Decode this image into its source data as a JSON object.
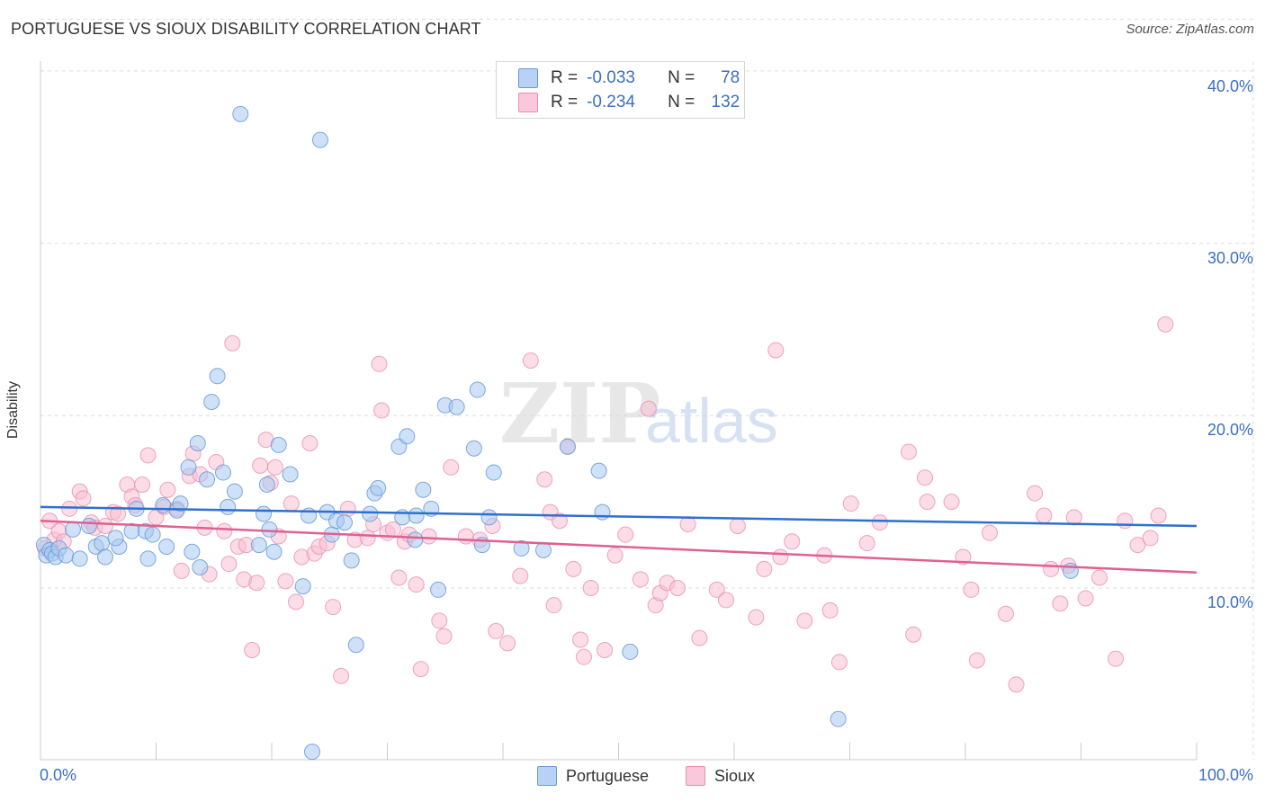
{
  "header": {
    "title": "PORTUGUESE VS SIOUX DISABILITY CORRELATION CHART",
    "source": "Source: ZipAtlas.com"
  },
  "legend": {
    "portuguese": {
      "r_label": "R =",
      "r_value": "-0.033",
      "n_label": "N =",
      "n_value": "78"
    },
    "sioux": {
      "r_label": "R =",
      "r_value": "-0.234",
      "n_label": "N =",
      "n_value": "132"
    }
  },
  "colors": {
    "portuguese_fill": "#a8c8f0",
    "portuguese_stroke": "#6a9ad8",
    "portuguese_line": "#2f6fd0",
    "sioux_fill": "#f8c0d4",
    "sioux_stroke": "#e890b0",
    "sioux_line": "#e0608f",
    "axis_text": "#3a6fc4",
    "grid": "#dddddd"
  },
  "chart_data": {
    "type": "scatter",
    "title": "PORTUGUESE VS SIOUX DISABILITY CORRELATION CHART",
    "xlabel": "",
    "ylabel": "Disability",
    "xlim": [
      0,
      100
    ],
    "ylim": [
      0,
      43
    ],
    "x_tick_labels": [
      "0.0%",
      "100.0%"
    ],
    "y_ticks": [
      10,
      20,
      30,
      40
    ],
    "y_tick_labels": [
      "10.0%",
      "20.0%",
      "30.0%",
      "40.0%"
    ],
    "grid": true,
    "legend_position": "top-center",
    "watermark": "ZIPatlas",
    "series": [
      {
        "name": "Portuguese",
        "r": -0.033,
        "n": 78,
        "trend": {
          "x": [
            0,
            100
          ],
          "y": [
            14.7,
            13.6
          ]
        },
        "points": [
          [
            0.3,
            12.5
          ],
          [
            0.5,
            11.9
          ],
          [
            0.8,
            12.2
          ],
          [
            1.0,
            12.0
          ],
          [
            1.3,
            11.8
          ],
          [
            1.6,
            12.3
          ],
          [
            2.2,
            11.9
          ],
          [
            2.8,
            13.4
          ],
          [
            3.4,
            11.7
          ],
          [
            4.2,
            13.6
          ],
          [
            4.8,
            12.4
          ],
          [
            5.3,
            12.6
          ],
          [
            5.6,
            11.8
          ],
          [
            6.8,
            12.4
          ],
          [
            6.5,
            12.9
          ],
          [
            7.9,
            13.3
          ],
          [
            8.3,
            14.6
          ],
          [
            9.1,
            13.3
          ],
          [
            9.3,
            11.7
          ],
          [
            9.7,
            13.1
          ],
          [
            10.6,
            14.8
          ],
          [
            10.9,
            12.4
          ],
          [
            11.8,
            14.5
          ],
          [
            12.1,
            14.9
          ],
          [
            12.8,
            17.0
          ],
          [
            13.1,
            12.1
          ],
          [
            13.6,
            18.4
          ],
          [
            13.8,
            11.2
          ],
          [
            14.4,
            16.3
          ],
          [
            14.8,
            20.8
          ],
          [
            15.3,
            22.3
          ],
          [
            15.8,
            16.7
          ],
          [
            16.2,
            14.7
          ],
          [
            16.8,
            15.6
          ],
          [
            17.3,
            37.5
          ],
          [
            18.9,
            12.5
          ],
          [
            19.3,
            14.3
          ],
          [
            19.6,
            16.0
          ],
          [
            19.8,
            13.4
          ],
          [
            20.2,
            12.1
          ],
          [
            20.6,
            18.3
          ],
          [
            21.6,
            16.6
          ],
          [
            22.7,
            10.1
          ],
          [
            23.2,
            14.2
          ],
          [
            23.5,
            0.5
          ],
          [
            24.2,
            36.0
          ],
          [
            24.8,
            14.4
          ],
          [
            25.2,
            13.1
          ],
          [
            25.6,
            13.9
          ],
          [
            26.3,
            13.8
          ],
          [
            26.9,
            11.6
          ],
          [
            27.3,
            6.7
          ],
          [
            28.5,
            14.3
          ],
          [
            28.9,
            15.5
          ],
          [
            29.2,
            15.8
          ],
          [
            31.0,
            18.2
          ],
          [
            31.3,
            14.1
          ],
          [
            31.7,
            18.8
          ],
          [
            32.4,
            12.8
          ],
          [
            32.5,
            14.2
          ],
          [
            33.1,
            15.7
          ],
          [
            33.8,
            14.6
          ],
          [
            34.4,
            9.9
          ],
          [
            35.0,
            20.6
          ],
          [
            36.0,
            20.5
          ],
          [
            37.5,
            18.1
          ],
          [
            37.8,
            21.5
          ],
          [
            38.2,
            12.5
          ],
          [
            38.8,
            14.1
          ],
          [
            39.2,
            16.7
          ],
          [
            41.6,
            12.3
          ],
          [
            43.5,
            12.2
          ],
          [
            45.6,
            18.2
          ],
          [
            48.3,
            16.8
          ],
          [
            48.6,
            14.4
          ],
          [
            51.0,
            6.3
          ],
          [
            69.0,
            2.4
          ],
          [
            89.1,
            11.0
          ]
        ]
      },
      {
        "name": "Sioux",
        "r": -0.234,
        "n": 132,
        "trend": {
          "x": [
            0,
            100
          ],
          "y": [
            13.9,
            10.9
          ]
        },
        "points": [
          [
            0.4,
            12.3
          ],
          [
            0.8,
            13.9
          ],
          [
            1.2,
            12.8
          ],
          [
            1.6,
            13.3
          ],
          [
            2.0,
            12.7
          ],
          [
            2.5,
            14.6
          ],
          [
            3.4,
            15.6
          ],
          [
            3.7,
            15.2
          ],
          [
            4.4,
            13.8
          ],
          [
            4.7,
            13.5
          ],
          [
            5.6,
            13.6
          ],
          [
            6.3,
            14.4
          ],
          [
            6.7,
            14.3
          ],
          [
            7.5,
            16.0
          ],
          [
            7.9,
            15.3
          ],
          [
            8.2,
            14.8
          ],
          [
            8.8,
            16.0
          ],
          [
            9.3,
            17.7
          ],
          [
            10.0,
            14.1
          ],
          [
            10.7,
            14.7
          ],
          [
            11.0,
            15.7
          ],
          [
            11.8,
            14.6
          ],
          [
            12.2,
            11.0
          ],
          [
            12.9,
            16.5
          ],
          [
            13.2,
            17.8
          ],
          [
            13.8,
            16.6
          ],
          [
            14.2,
            13.5
          ],
          [
            14.6,
            10.8
          ],
          [
            15.2,
            17.3
          ],
          [
            15.9,
            13.3
          ],
          [
            16.3,
            11.4
          ],
          [
            16.6,
            24.2
          ],
          [
            17.1,
            12.4
          ],
          [
            17.6,
            10.5
          ],
          [
            17.8,
            12.5
          ],
          [
            18.3,
            6.4
          ],
          [
            18.7,
            10.3
          ],
          [
            19.0,
            17.1
          ],
          [
            19.5,
            18.6
          ],
          [
            19.9,
            16.1
          ],
          [
            20.3,
            17.0
          ],
          [
            20.6,
            13.0
          ],
          [
            21.2,
            10.4
          ],
          [
            21.7,
            14.9
          ],
          [
            22.1,
            9.2
          ],
          [
            22.6,
            11.8
          ],
          [
            23.3,
            18.4
          ],
          [
            23.7,
            12.0
          ],
          [
            24.1,
            12.4
          ],
          [
            24.8,
            12.6
          ],
          [
            25.3,
            8.9
          ],
          [
            26.0,
            4.9
          ],
          [
            26.6,
            14.6
          ],
          [
            27.2,
            12.8
          ],
          [
            28.3,
            12.9
          ],
          [
            28.8,
            13.7
          ],
          [
            29.3,
            23.0
          ],
          [
            29.5,
            20.3
          ],
          [
            30.0,
            13.2
          ],
          [
            30.5,
            13.4
          ],
          [
            31.0,
            10.6
          ],
          [
            31.5,
            12.7
          ],
          [
            31.9,
            13.1
          ],
          [
            32.5,
            10.2
          ],
          [
            32.9,
            5.3
          ],
          [
            33.6,
            13.0
          ],
          [
            34.5,
            8.1
          ],
          [
            34.9,
            7.2
          ],
          [
            35.5,
            17.0
          ],
          [
            36.8,
            13.0
          ],
          [
            38.0,
            12.8
          ],
          [
            39.1,
            13.6
          ],
          [
            39.4,
            7.5
          ],
          [
            40.4,
            6.8
          ],
          [
            41.5,
            10.7
          ],
          [
            42.4,
            23.2
          ],
          [
            43.6,
            16.3
          ],
          [
            44.1,
            14.4
          ],
          [
            44.4,
            9.0
          ],
          [
            44.9,
            13.9
          ],
          [
            45.6,
            18.2
          ],
          [
            46.1,
            11.1
          ],
          [
            46.7,
            7.0
          ],
          [
            47.0,
            6.0
          ],
          [
            47.6,
            10.0
          ],
          [
            48.8,
            6.4
          ],
          [
            49.7,
            11.9
          ],
          [
            50.6,
            13.1
          ],
          [
            51.9,
            10.5
          ],
          [
            52.6,
            20.4
          ],
          [
            53.2,
            9.0
          ],
          [
            53.6,
            9.7
          ],
          [
            54.2,
            10.3
          ],
          [
            55.1,
            10.0
          ],
          [
            56.0,
            13.7
          ],
          [
            57.0,
            7.1
          ],
          [
            58.5,
            9.9
          ],
          [
            59.3,
            9.3
          ],
          [
            60.3,
            13.6
          ],
          [
            61.9,
            8.3
          ],
          [
            62.6,
            11.1
          ],
          [
            63.6,
            23.8
          ],
          [
            64.0,
            11.8
          ],
          [
            65.0,
            12.7
          ],
          [
            66.1,
            8.1
          ],
          [
            67.8,
            11.9
          ],
          [
            68.3,
            8.7
          ],
          [
            69.1,
            5.7
          ],
          [
            70.1,
            14.9
          ],
          [
            71.5,
            12.6
          ],
          [
            72.6,
            13.8
          ],
          [
            75.1,
            17.9
          ],
          [
            75.5,
            7.3
          ],
          [
            76.5,
            16.4
          ],
          [
            76.7,
            15.0
          ],
          [
            78.8,
            15.0
          ],
          [
            79.8,
            11.8
          ],
          [
            80.5,
            9.9
          ],
          [
            81.0,
            5.8
          ],
          [
            82.1,
            13.2
          ],
          [
            83.5,
            8.5
          ],
          [
            84.4,
            4.4
          ],
          [
            86.0,
            15.5
          ],
          [
            86.8,
            14.2
          ],
          [
            87.4,
            11.1
          ],
          [
            88.2,
            9.1
          ],
          [
            88.9,
            11.3
          ],
          [
            89.4,
            14.1
          ],
          [
            90.4,
            9.4
          ],
          [
            91.6,
            10.6
          ],
          [
            93.0,
            5.9
          ],
          [
            93.8,
            13.9
          ],
          [
            94.9,
            12.5
          ],
          [
            96.0,
            12.9
          ],
          [
            96.7,
            14.2
          ],
          [
            97.3,
            25.3
          ]
        ]
      }
    ]
  }
}
